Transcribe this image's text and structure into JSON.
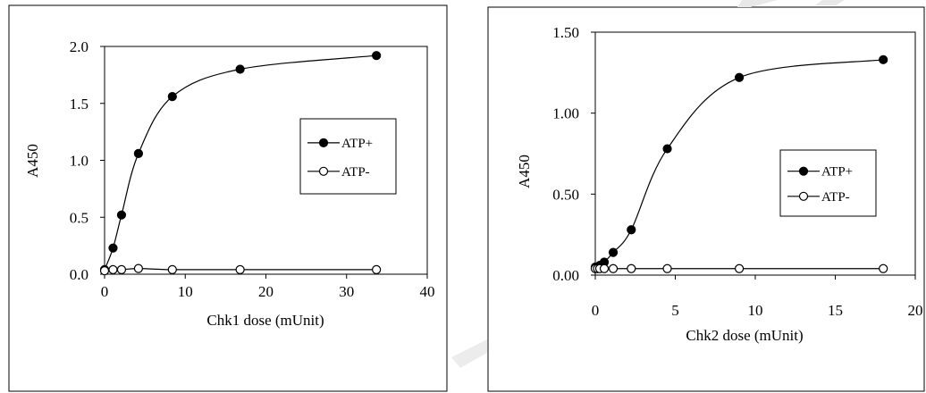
{
  "chart_data": [
    {
      "type": "line",
      "title": "",
      "xlabel": "Chk1 dose (mUnit)",
      "ylabel": "A450",
      "xlim": [
        0,
        40
      ],
      "ylim": [
        0,
        2.0
      ],
      "xticks": [
        "0",
        "10",
        "20",
        "30",
        "40"
      ],
      "yticks": [
        "0.0",
        "0.5",
        "1.0",
        "1.5",
        "2.0"
      ],
      "grid": false,
      "legend_position": "right-center",
      "series": [
        {
          "name": "ATP+",
          "marker": "filled-circle",
          "x": [
            0,
            1.05,
            2.1,
            4.2,
            8.4,
            16.8,
            33.7
          ],
          "y": [
            0.04,
            0.23,
            0.52,
            1.06,
            1.56,
            1.8,
            1.92
          ]
        },
        {
          "name": "ATP-",
          "marker": "open-circle",
          "x": [
            0,
            1.05,
            2.1,
            4.2,
            8.4,
            16.8,
            33.7
          ],
          "y": [
            0.03,
            0.04,
            0.04,
            0.05,
            0.04,
            0.04,
            0.04
          ]
        }
      ]
    },
    {
      "type": "line",
      "title": "",
      "xlabel": "Chk2 dose (mUnit)",
      "ylabel": "A450",
      "xlim": [
        0,
        20
      ],
      "ylim": [
        0,
        1.5
      ],
      "xticks": [
        "0",
        "5",
        "10",
        "15",
        "20"
      ],
      "yticks": [
        "0.00",
        "0.50",
        "1.00",
        "1.50"
      ],
      "grid": false,
      "legend_position": "right-center",
      "series": [
        {
          "name": "ATP+",
          "marker": "filled-circle",
          "x": [
            0,
            0.14,
            0.28,
            0.56,
            1.12,
            2.25,
            4.5,
            9.0,
            18.0
          ],
          "y": [
            0.05,
            0.05,
            0.06,
            0.08,
            0.14,
            0.28,
            0.78,
            1.22,
            1.33
          ]
        },
        {
          "name": "ATP-",
          "marker": "open-circle",
          "x": [
            0,
            0.14,
            0.28,
            0.56,
            1.12,
            2.25,
            4.5,
            9.0,
            18.0
          ],
          "y": [
            0.04,
            0.04,
            0.04,
            0.04,
            0.04,
            0.04,
            0.04,
            0.04,
            0.04
          ]
        }
      ]
    }
  ]
}
